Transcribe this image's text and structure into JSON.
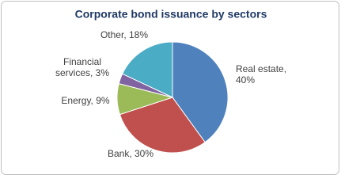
{
  "chart_data": {
    "type": "pie",
    "title": "Corporate bond issuance by sectors",
    "values": [
      40,
      30,
      9,
      3,
      18
    ],
    "value_labels": [
      [
        "Real estate,",
        "40%"
      ],
      [
        "Bank, 30%"
      ],
      [
        "Energy, 9%"
      ],
      [
        "Financial",
        "services, 3%"
      ],
      [
        "Other, 18%"
      ]
    ],
    "colors": [
      "#4f81bd",
      "#c0504d",
      "#9bbb59",
      "#8064a2",
      "#4bacc6"
    ]
  }
}
